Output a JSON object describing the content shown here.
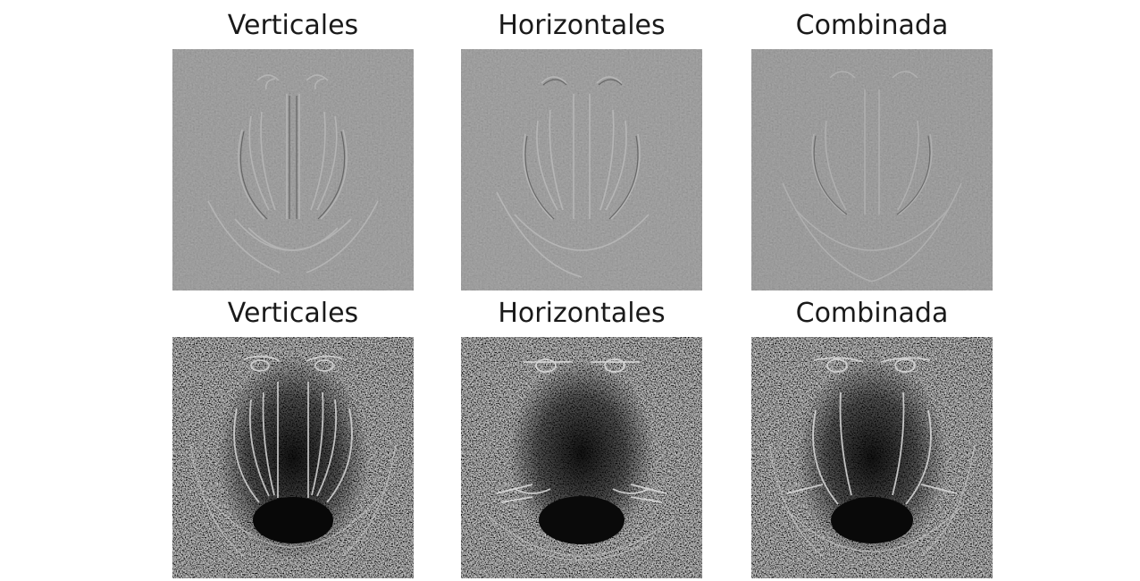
{
  "figure": {
    "panels": [
      {
        "title": "Verticales",
        "style": "gray"
      },
      {
        "title": "Horizontales",
        "style": "gray"
      },
      {
        "title": "Combinada",
        "style": "gray"
      },
      {
        "title": "Verticales",
        "style": "dark"
      },
      {
        "title": "Horizontales",
        "style": "dark"
      },
      {
        "title": "Combinada",
        "style": "dark"
      }
    ]
  }
}
